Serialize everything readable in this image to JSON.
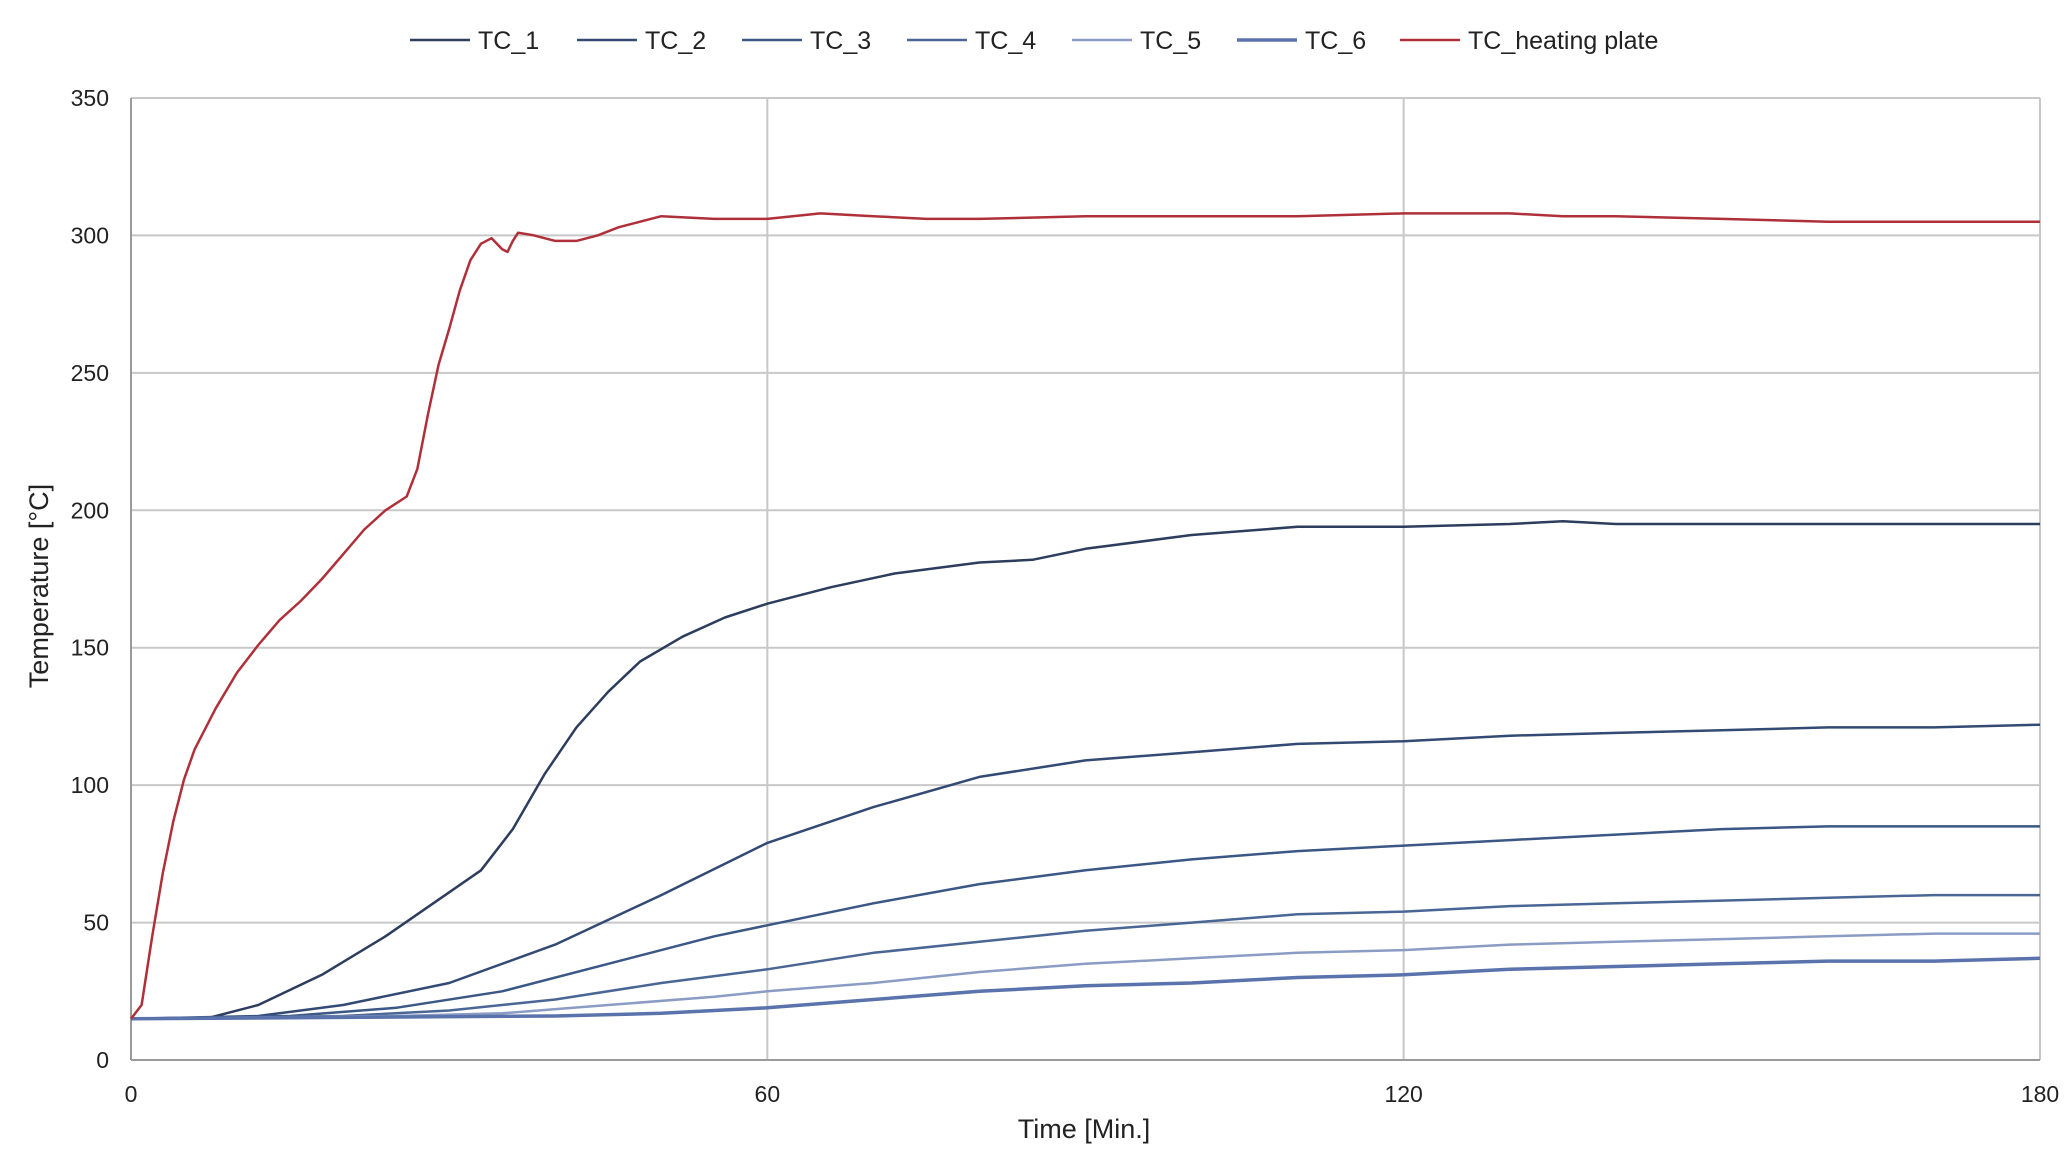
{
  "chart_data": {
    "type": "line",
    "title": "",
    "xlabel": "Time [Min.]",
    "ylabel": "Temperature [°C]",
    "xlim": [
      0,
      180
    ],
    "ylim": [
      0,
      350
    ],
    "xticks": [
      0,
      60,
      120,
      180
    ],
    "yticks": [
      0,
      50,
      100,
      150,
      200,
      250,
      300,
      350
    ],
    "grid": "major gridlines on both axes",
    "legend_position": "top",
    "series": [
      {
        "name": "TC_1",
        "color": "#2d3d5e",
        "points": [
          [
            0,
            15
          ],
          [
            7,
            15
          ],
          [
            12,
            20
          ],
          [
            18,
            31
          ],
          [
            24,
            45
          ],
          [
            30,
            61
          ],
          [
            33,
            69
          ],
          [
            36,
            84
          ],
          [
            39,
            104
          ],
          [
            42,
            121
          ],
          [
            45,
            134
          ],
          [
            48,
            145
          ],
          [
            52,
            154
          ],
          [
            56,
            161
          ],
          [
            60,
            166
          ],
          [
            66,
            172
          ],
          [
            72,
            177
          ],
          [
            80,
            181
          ],
          [
            85,
            182
          ],
          [
            90,
            186
          ],
          [
            100,
            191
          ],
          [
            110,
            194
          ],
          [
            120,
            194
          ],
          [
            130,
            195
          ],
          [
            135,
            196
          ],
          [
            140,
            195
          ],
          [
            150,
            195
          ],
          [
            160,
            195
          ],
          [
            170,
            195
          ],
          [
            180,
            195
          ]
        ]
      },
      {
        "name": "TC_2",
        "color": "#324a74",
        "points": [
          [
            0,
            15
          ],
          [
            12,
            16
          ],
          [
            20,
            20
          ],
          [
            30,
            28
          ],
          [
            40,
            42
          ],
          [
            50,
            60
          ],
          [
            60,
            79
          ],
          [
            70,
            92
          ],
          [
            80,
            103
          ],
          [
            90,
            109
          ],
          [
            100,
            112
          ],
          [
            110,
            115
          ],
          [
            120,
            116
          ],
          [
            130,
            118
          ],
          [
            140,
            119
          ],
          [
            150,
            120
          ],
          [
            160,
            121
          ],
          [
            170,
            121
          ],
          [
            180,
            122
          ]
        ]
      },
      {
        "name": "TC_3",
        "color": "#3b5785",
        "points": [
          [
            0,
            15
          ],
          [
            15,
            16
          ],
          [
            25,
            19
          ],
          [
            35,
            25
          ],
          [
            45,
            35
          ],
          [
            55,
            45
          ],
          [
            60,
            49
          ],
          [
            70,
            57
          ],
          [
            80,
            64
          ],
          [
            90,
            69
          ],
          [
            100,
            73
          ],
          [
            110,
            76
          ],
          [
            120,
            78
          ],
          [
            130,
            80
          ],
          [
            140,
            82
          ],
          [
            150,
            84
          ],
          [
            160,
            85
          ],
          [
            170,
            85
          ],
          [
            180,
            85
          ]
        ]
      },
      {
        "name": "TC_4",
        "color": "#4a6695",
        "points": [
          [
            0,
            15
          ],
          [
            20,
            16
          ],
          [
            30,
            18
          ],
          [
            40,
            22
          ],
          [
            50,
            28
          ],
          [
            60,
            33
          ],
          [
            70,
            39
          ],
          [
            80,
            43
          ],
          [
            90,
            47
          ],
          [
            100,
            50
          ],
          [
            110,
            53
          ],
          [
            120,
            54
          ],
          [
            130,
            56
          ],
          [
            140,
            57
          ],
          [
            150,
            58
          ],
          [
            160,
            59
          ],
          [
            170,
            60
          ],
          [
            180,
            60
          ]
        ]
      },
      {
        "name": "TC_5",
        "color": "#8a9cc4",
        "points": [
          [
            0,
            15
          ],
          [
            25,
            16
          ],
          [
            35,
            17
          ],
          [
            45,
            20
          ],
          [
            55,
            23
          ],
          [
            60,
            25
          ],
          [
            70,
            28
          ],
          [
            80,
            32
          ],
          [
            90,
            35
          ],
          [
            100,
            37
          ],
          [
            110,
            39
          ],
          [
            120,
            40
          ],
          [
            130,
            42
          ],
          [
            140,
            43
          ],
          [
            150,
            44
          ],
          [
            160,
            45
          ],
          [
            170,
            46
          ],
          [
            180,
            46
          ]
        ]
      },
      {
        "name": "TC_6",
        "color": "#5a73ac",
        "points": [
          [
            0,
            15
          ],
          [
            40,
            16
          ],
          [
            50,
            17
          ],
          [
            60,
            19
          ],
          [
            70,
            22
          ],
          [
            80,
            25
          ],
          [
            90,
            27
          ],
          [
            100,
            28
          ],
          [
            110,
            30
          ],
          [
            120,
            31
          ],
          [
            130,
            33
          ],
          [
            140,
            34
          ],
          [
            150,
            35
          ],
          [
            160,
            36
          ],
          [
            170,
            36
          ],
          [
            180,
            37
          ]
        ]
      },
      {
        "name": "TC_heating plate",
        "color": "#b0303a",
        "points": [
          [
            0,
            15
          ],
          [
            1,
            20
          ],
          [
            2,
            45
          ],
          [
            3,
            68
          ],
          [
            4,
            87
          ],
          [
            5,
            102
          ],
          [
            6,
            113
          ],
          [
            8,
            128
          ],
          [
            10,
            141
          ],
          [
            12,
            151
          ],
          [
            14,
            160
          ],
          [
            16,
            167
          ],
          [
            18,
            175
          ],
          [
            20,
            184
          ],
          [
            22,
            193
          ],
          [
            24,
            200
          ],
          [
            26,
            205
          ],
          [
            27,
            215
          ],
          [
            28,
            235
          ],
          [
            29,
            253
          ],
          [
            30,
            266
          ],
          [
            31,
            280
          ],
          [
            32,
            291
          ],
          [
            33,
            297
          ],
          [
            34,
            299
          ],
          [
            35,
            295
          ],
          [
            35.5,
            294
          ],
          [
            36,
            298
          ],
          [
            36.5,
            301
          ],
          [
            38,
            300
          ],
          [
            40,
            298
          ],
          [
            42,
            298
          ],
          [
            44,
            300
          ],
          [
            46,
            303
          ],
          [
            48,
            305
          ],
          [
            50,
            307
          ],
          [
            55,
            306
          ],
          [
            60,
            306
          ],
          [
            65,
            308
          ],
          [
            70,
            307
          ],
          [
            75,
            306
          ],
          [
            80,
            306
          ],
          [
            90,
            307
          ],
          [
            100,
            307
          ],
          [
            110,
            307
          ],
          [
            120,
            308
          ],
          [
            130,
            308
          ],
          [
            135,
            307
          ],
          [
            140,
            307
          ],
          [
            150,
            306
          ],
          [
            160,
            305
          ],
          [
            170,
            305
          ],
          [
            180,
            305
          ]
        ]
      }
    ]
  }
}
